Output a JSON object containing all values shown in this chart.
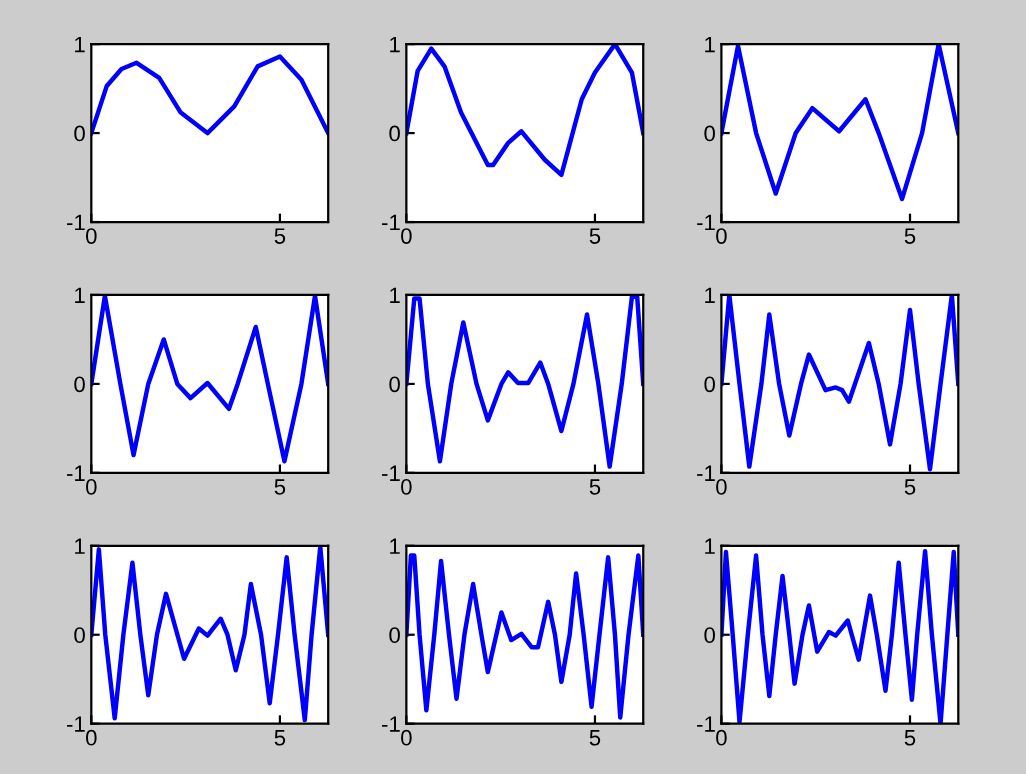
{
  "chart_data": [
    {
      "type": "line",
      "xlim": [
        0,
        6.28
      ],
      "ylim": [
        -1,
        1
      ],
      "xticks": [
        0,
        5
      ],
      "yticks": [
        -1,
        0,
        1
      ],
      "series": [
        {
          "color": "#0000ff",
          "x": [
            0,
            0.41,
            0.8,
            1.2,
            1.8,
            2.37,
            3.08,
            3.79,
            4.41,
            5.0,
            5.57,
            6.28
          ],
          "values": [
            0,
            0.53,
            0.72,
            0.79,
            0.62,
            0.23,
            0,
            0.3,
            0.75,
            0.86,
            0.6,
            0
          ]
        }
      ]
    },
    {
      "type": "line",
      "xlim": [
        0,
        6.28
      ],
      "ylim": [
        -1,
        1
      ],
      "xticks": [
        0,
        5
      ],
      "yticks": [
        -1,
        0,
        1
      ],
      "series": [
        {
          "color": "#0000ff",
          "x": [
            0,
            0.3,
            0.66,
            1.01,
            1.45,
            2.16,
            2.3,
            2.7,
            3.05,
            3.67,
            4.11,
            4.65,
            5.0,
            5.53,
            5.98,
            6.28
          ],
          "values": [
            0,
            0.7,
            0.95,
            0.75,
            0.23,
            -0.36,
            -0.36,
            -0.11,
            0.02,
            -0.3,
            -0.47,
            0.38,
            0.68,
            1.0,
            0.68,
            0
          ]
        }
      ]
    },
    {
      "type": "line",
      "xlim": [
        0,
        6.28
      ],
      "ylim": [
        -1,
        1
      ],
      "xticks": [
        0,
        5
      ],
      "yticks": [
        -1,
        0,
        1
      ],
      "series": [
        {
          "color": "#0000ff",
          "x": [
            0,
            0.44,
            0.92,
            1.44,
            1.97,
            2.41,
            3.12,
            3.82,
            4.17,
            4.79,
            5.32,
            5.76,
            6.28
          ],
          "values": [
            0,
            0.98,
            0,
            -0.68,
            0,
            0.28,
            0.02,
            0.38,
            0,
            -0.74,
            0,
            1.0,
            0
          ]
        }
      ]
    },
    {
      "type": "line",
      "xlim": [
        0,
        6.28
      ],
      "ylim": [
        -1,
        1
      ],
      "xticks": [
        0,
        5
      ],
      "yticks": [
        -1,
        0,
        1
      ],
      "series": [
        {
          "color": "#0000ff",
          "x": [
            0,
            0.36,
            0.77,
            1.12,
            1.51,
            1.92,
            2.28,
            2.63,
            3.08,
            3.65,
            3.88,
            4.36,
            4.68,
            5.12,
            5.57,
            5.93,
            6.28
          ],
          "values": [
            0,
            0.99,
            0,
            -0.8,
            0,
            0.5,
            0,
            -0.16,
            0.01,
            -0.28,
            0,
            0.64,
            0,
            -0.87,
            0,
            0.99,
            0
          ]
        }
      ]
    },
    {
      "type": "line",
      "xlim": [
        0,
        6.28
      ],
      "ylim": [
        -1,
        1
      ],
      "xticks": [
        0,
        5
      ],
      "yticks": [
        -1,
        0,
        1
      ],
      "series": [
        {
          "color": "#0000ff",
          "x": [
            0,
            0.21,
            0.35,
            0.57,
            0.89,
            1.19,
            1.51,
            1.86,
            2.16,
            2.52,
            2.7,
            2.96,
            3.23,
            3.55,
            3.76,
            4.11,
            4.43,
            4.79,
            5.09,
            5.39,
            5.71,
            5.98,
            6.12,
            6.28
          ],
          "values": [
            0,
            0.96,
            0.96,
            0,
            -0.87,
            0,
            0.69,
            0,
            -0.41,
            0,
            0.13,
            0.01,
            0.01,
            0.24,
            0,
            -0.53,
            0,
            0.78,
            0,
            -0.93,
            0,
            0.98,
            0.98,
            0
          ]
        }
      ]
    },
    {
      "type": "line",
      "xlim": [
        0,
        6.28
      ],
      "ylim": [
        -1,
        1
      ],
      "xticks": [
        0,
        5
      ],
      "yticks": [
        -1,
        0,
        1
      ],
      "series": [
        {
          "color": "#0000ff",
          "x": [
            0,
            0.21,
            0.48,
            0.74,
            1.06,
            1.27,
            1.53,
            1.8,
            2.11,
            2.32,
            2.76,
            3.03,
            3.2,
            3.38,
            3.91,
            4.17,
            4.47,
            4.75,
            5.0,
            5.23,
            5.53,
            5.81,
            6.11,
            6.28
          ],
          "values": [
            0,
            1.0,
            0,
            -0.93,
            0,
            0.78,
            0,
            -0.58,
            0,
            0.33,
            -0.07,
            -0.04,
            -0.07,
            -0.2,
            0.46,
            0,
            -0.68,
            0,
            0.83,
            0,
            -0.96,
            0,
            1.0,
            0
          ]
        }
      ]
    },
    {
      "type": "line",
      "xlim": [
        0,
        6.28
      ],
      "ylim": [
        -1,
        1
      ],
      "xticks": [
        0,
        5
      ],
      "yticks": [
        -1,
        0,
        1
      ],
      "series": [
        {
          "color": "#0000ff",
          "x": [
            0,
            0.2,
            0.37,
            0.62,
            0.85,
            1.09,
            1.3,
            1.51,
            1.74,
            1.98,
            2.46,
            2.85,
            3.08,
            3.43,
            3.61,
            3.83,
            4.06,
            4.23,
            4.5,
            4.73,
            4.95,
            5.18,
            5.39,
            5.66,
            5.84,
            6.07,
            6.28
          ],
          "values": [
            0,
            0.96,
            0,
            -0.94,
            0,
            0.81,
            0,
            -0.68,
            0,
            0.46,
            -0.27,
            0.07,
            -0.01,
            0.18,
            0,
            -0.4,
            0,
            0.57,
            0,
            -0.77,
            0,
            0.87,
            0,
            -0.96,
            0,
            0.99,
            0
          ]
        }
      ]
    },
    {
      "type": "line",
      "xlim": [
        0,
        6.28
      ],
      "ylim": [
        -1,
        1
      ],
      "xticks": [
        0,
        5
      ],
      "yticks": [
        -1,
        0,
        1
      ],
      "series": [
        {
          "color": "#0000ff",
          "x": [
            0,
            0.12,
            0.21,
            0.35,
            0.53,
            0.74,
            0.92,
            1.13,
            1.33,
            1.54,
            1.77,
            1.99,
            2.16,
            2.52,
            2.78,
            3.05,
            3.32,
            3.49,
            3.76,
            3.94,
            4.11,
            4.33,
            4.5,
            4.7,
            4.91,
            5.12,
            5.35,
            5.53,
            5.67,
            5.89,
            6.15,
            6.28
          ],
          "values": [
            0,
            0.89,
            0.89,
            0,
            -0.85,
            0,
            0.83,
            0,
            -0.72,
            0,
            0.57,
            0,
            -0.42,
            0.25,
            -0.06,
            0.01,
            -0.14,
            -0.14,
            0.37,
            0,
            -0.53,
            0,
            0.69,
            0,
            -0.81,
            0,
            0.87,
            0,
            -0.93,
            0,
            0.89,
            0
          ]
        }
      ]
    },
    {
      "type": "line",
      "xlim": [
        0,
        6.28
      ],
      "ylim": [
        -1,
        1
      ],
      "xticks": [
        0,
        5
      ],
      "yticks": [
        -1,
        0,
        1
      ],
      "series": [
        {
          "color": "#0000ff",
          "x": [
            0,
            0.12,
            0.3,
            0.48,
            0.7,
            0.92,
            1.09,
            1.27,
            1.44,
            1.62,
            1.8,
            1.94,
            2.15,
            2.32,
            2.54,
            2.85,
            3.03,
            3.35,
            3.64,
            3.94,
            4.12,
            4.35,
            4.52,
            4.7,
            4.88,
            5.05,
            5.19,
            5.4,
            5.58,
            5.81,
            5.99,
            6.16,
            6.28
          ],
          "values": [
            0,
            0.93,
            0,
            -0.98,
            0,
            0.89,
            0,
            -0.69,
            0,
            0.66,
            0,
            -0.55,
            0,
            0.33,
            -0.19,
            0.03,
            -0.01,
            0.16,
            -0.28,
            0.44,
            0,
            -0.63,
            0,
            0.81,
            0,
            -0.73,
            0,
            0.94,
            0,
            -1.0,
            0,
            0.93,
            0
          ]
        }
      ]
    }
  ]
}
